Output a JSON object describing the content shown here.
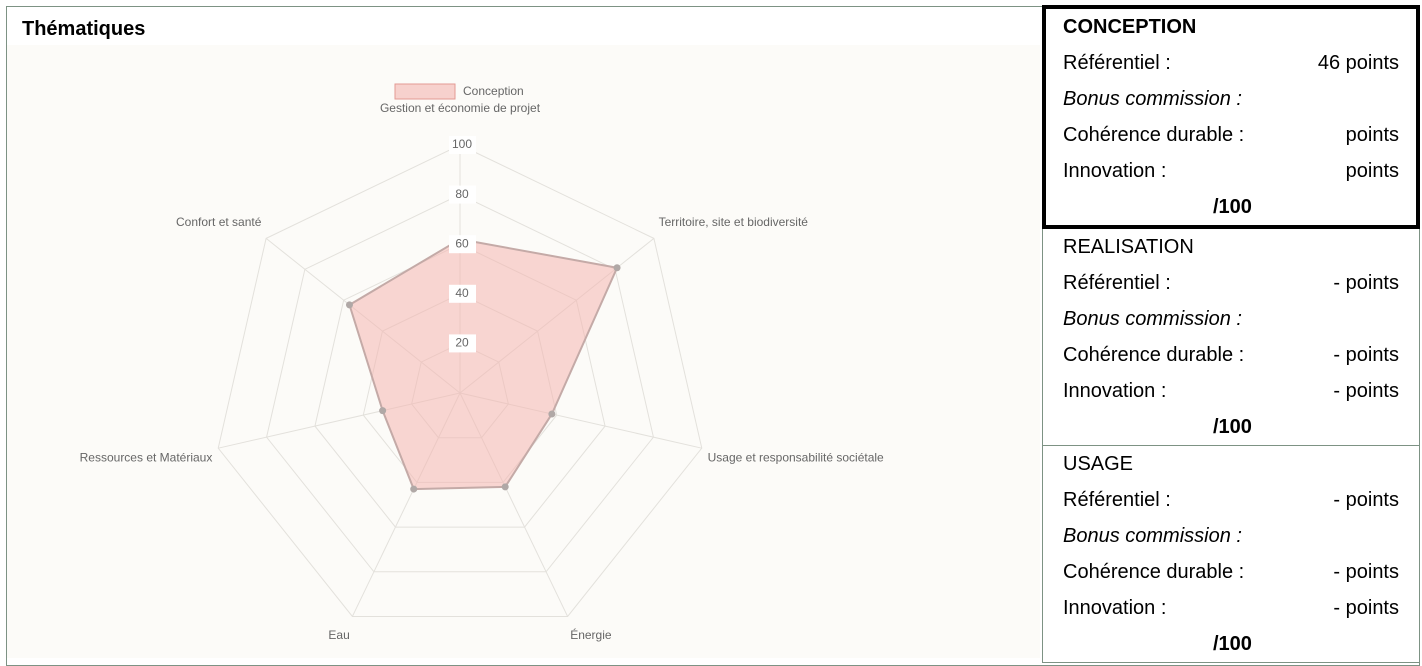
{
  "heading": "Thématiques",
  "chart_data": {
    "type": "radar",
    "categories": [
      "Gestion et économie de projet",
      "Territoire, site et biodiversité",
      "Usage et responsabilité sociétale",
      "Énergie",
      "Eau",
      "Ressources et Matériaux",
      "Confort et santé"
    ],
    "series": [
      {
        "name": "Conception",
        "color": "#f4b6b0",
        "values": [
          62,
          81,
          38,
          42,
          43,
          32,
          57
        ]
      }
    ],
    "ylim": [
      0,
      100
    ],
    "yticks": [
      20,
      40,
      60,
      80,
      100
    ],
    "grid": true,
    "legend": "top"
  },
  "panel": {
    "sections": [
      {
        "title": "CONCEPTION",
        "referentiel_label": "Référentiel :",
        "referentiel_value": "46 points",
        "bonus": "Bonus commission :",
        "coherence_label": "Cohérence durable :",
        "coherence_value": "points",
        "innovation_label": "Innovation :",
        "innovation_value": "points",
        "total": "/100"
      },
      {
        "title": "REALISATION",
        "referentiel_label": "Référentiel :",
        "referentiel_value": "- points",
        "bonus": "Bonus commission :",
        "coherence_label": "Cohérence durable :",
        "coherence_value": "- points",
        "innovation_label": "Innovation :",
        "innovation_value": "- points",
        "total": "/100"
      },
      {
        "title": "USAGE",
        "referentiel_label": "Référentiel :",
        "referentiel_value": "- points",
        "bonus": "Bonus commission :",
        "coherence_label": "Cohérence durable :",
        "coherence_value": "- points",
        "innovation_label": "Innovation :",
        "innovation_value": "- points",
        "total": "/100"
      }
    ]
  }
}
